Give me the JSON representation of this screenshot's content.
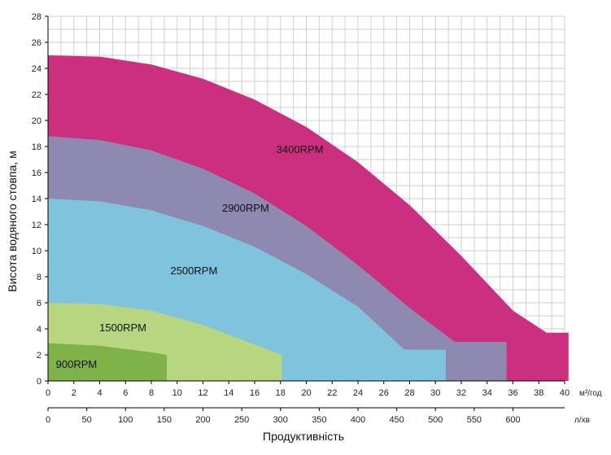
{
  "chart_data": {
    "type": "area",
    "title": "",
    "ylabel": "Висота водяного стовпа, м",
    "xlabel": "Продуктивність",
    "x_unit": "м³/год",
    "x2_unit": "л/хв",
    "xlim": [
      0,
      40
    ],
    "ylim": [
      0,
      28
    ],
    "x_ticks": [
      0,
      2,
      4,
      6,
      8,
      10,
      12,
      14,
      16,
      18,
      20,
      22,
      24,
      26,
      28,
      30,
      32,
      34,
      36,
      38,
      40
    ],
    "y_ticks": [
      0,
      2,
      4,
      6,
      8,
      10,
      12,
      14,
      16,
      18,
      20,
      22,
      24,
      26,
      28
    ],
    "x2_ticks": [
      0,
      50,
      100,
      150,
      200,
      250,
      300,
      350,
      400,
      450,
      500,
      550,
      600
    ],
    "grid": true,
    "series": [
      {
        "name": "3400RPM",
        "color": "#cc2f7f",
        "x": [
          0,
          4,
          8,
          12,
          16,
          20,
          24,
          28,
          32,
          36,
          38.6,
          40.3
        ],
        "y": [
          25,
          24.9,
          24.3,
          23.2,
          21.6,
          19.5,
          16.8,
          13.5,
          9.6,
          5.4,
          3.7,
          3.7
        ]
      },
      {
        "name": "2900RPM",
        "color": "#8e89b0",
        "x": [
          0,
          4,
          8,
          12,
          16,
          20,
          24,
          28,
          31.5,
          35.5
        ],
        "y": [
          18.8,
          18.5,
          17.7,
          16.3,
          14.4,
          11.9,
          8.9,
          5.6,
          3,
          3
        ]
      },
      {
        "name": "2500RPM",
        "color": "#7fc4dc",
        "x": [
          0,
          4,
          8,
          12,
          16,
          20,
          24,
          27.6,
          30.8
        ],
        "y": [
          14,
          13.8,
          13.1,
          11.9,
          10.3,
          8.2,
          5.7,
          2.4,
          2.4
        ]
      },
      {
        "name": "1500RPM",
        "color": "#b7d67f",
        "x": [
          0,
          4,
          8,
          12,
          16,
          18.1
        ],
        "y": [
          6,
          5.9,
          5.4,
          4.3,
          2.8,
          2
        ]
      },
      {
        "name": "900RPM",
        "color": "#7fb34a",
        "x": [
          0,
          4,
          8,
          9.2
        ],
        "y": [
          2.9,
          2.7,
          2.2,
          2
        ]
      }
    ]
  }
}
